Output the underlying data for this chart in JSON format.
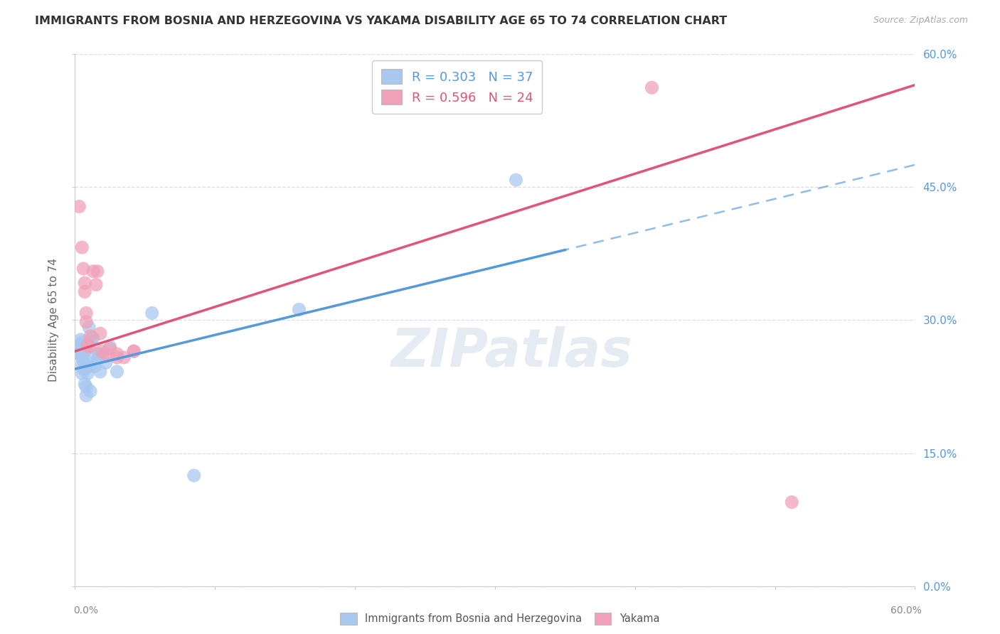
{
  "title": "IMMIGRANTS FROM BOSNIA AND HERZEGOVINA VS YAKAMA DISABILITY AGE 65 TO 74 CORRELATION CHART",
  "source": "Source: ZipAtlas.com",
  "ylabel": "Disability Age 65 to 74",
  "xlim": [
    0.0,
    0.6
  ],
  "ylim": [
    0.0,
    0.6
  ],
  "blue_R": "0.303",
  "blue_N": "37",
  "pink_R": "0.596",
  "pink_N": "24",
  "blue_color": "#a8c8f0",
  "pink_color": "#f0a0b8",
  "blue_line_color": "#5599dd",
  "pink_line_color": "#e05575",
  "background_color": "#ffffff",
  "grid_color": "#d8dde8",
  "watermark_color": "#d0dce8",
  "legend_label_blue": "Immigrants from Bosnia and Herzegovina",
  "legend_label_pink": "Yakama",
  "blue_line_x0": 0.0,
  "blue_line_y0": 0.245,
  "blue_line_x1": 0.6,
  "blue_line_y1": 0.475,
  "pink_line_x0": 0.0,
  "pink_line_y0": 0.265,
  "pink_line_x1": 0.6,
  "pink_line_y1": 0.565,
  "blue_points_x": [
    0.003,
    0.004,
    0.004,
    0.004,
    0.005,
    0.005,
    0.005,
    0.005,
    0.006,
    0.006,
    0.006,
    0.007,
    0.007,
    0.007,
    0.008,
    0.008,
    0.008,
    0.009,
    0.009,
    0.01,
    0.01,
    0.011,
    0.012,
    0.013,
    0.014,
    0.015,
    0.016,
    0.017,
    0.018,
    0.02,
    0.022,
    0.025,
    0.03,
    0.055,
    0.085,
    0.16,
    0.315
  ],
  "blue_points_y": [
    0.262,
    0.268,
    0.272,
    0.278,
    0.24,
    0.25,
    0.258,
    0.275,
    0.245,
    0.255,
    0.262,
    0.228,
    0.245,
    0.265,
    0.215,
    0.225,
    0.27,
    0.24,
    0.252,
    0.248,
    0.292,
    0.22,
    0.28,
    0.28,
    0.248,
    0.262,
    0.256,
    0.262,
    0.242,
    0.262,
    0.252,
    0.27,
    0.242,
    0.308,
    0.125,
    0.312,
    0.458
  ],
  "pink_points_x": [
    0.003,
    0.005,
    0.006,
    0.007,
    0.007,
    0.008,
    0.008,
    0.009,
    0.01,
    0.011,
    0.013,
    0.015,
    0.016,
    0.018,
    0.019,
    0.022,
    0.025,
    0.03,
    0.035,
    0.042,
    0.03,
    0.042,
    0.412,
    0.512
  ],
  "pink_points_y": [
    0.428,
    0.382,
    0.358,
    0.332,
    0.342,
    0.298,
    0.308,
    0.272,
    0.27,
    0.282,
    0.355,
    0.34,
    0.355,
    0.285,
    0.265,
    0.262,
    0.268,
    0.262,
    0.258,
    0.265,
    0.258,
    0.265,
    0.562,
    0.095
  ]
}
